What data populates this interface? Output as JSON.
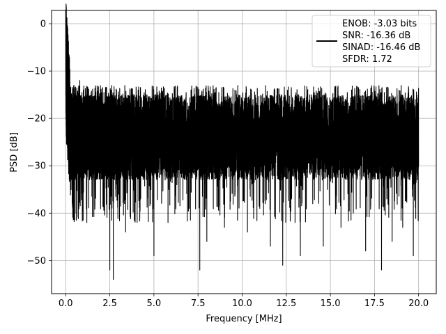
{
  "chart_data": {
    "type": "line",
    "title": "",
    "xlabel": "Frequency [MHz]",
    "ylabel": "PSD [dB]",
    "xlim": [
      -0.8,
      21.0
    ],
    "ylim": [
      -57.0,
      2.8
    ],
    "x_ticks": [
      0.0,
      2.5,
      5.0,
      7.5,
      10.0,
      12.5,
      15.0,
      17.5,
      20.0
    ],
    "x_tick_labels": [
      "0.0",
      "2.5",
      "5.0",
      "7.5",
      "10.0",
      "12.5",
      "15.0",
      "17.5",
      "20.0"
    ],
    "y_ticks": [
      0,
      -10,
      -20,
      -30,
      -40,
      -50
    ],
    "y_tick_labels": [
      "0",
      "−10",
      "−20",
      "−30",
      "−40",
      "−50"
    ],
    "grid": true,
    "legend": {
      "position": "top-right",
      "entries": [
        "ENOB: -3.03 bits",
        "SNR: -16.36 dB",
        "SINAD: -16.46 dB",
        "SFDR: 1.72"
      ]
    },
    "series": [
      {
        "color": "#000000",
        "x": [
          0.0,
          0.02,
          0.05,
          0.08,
          0.1,
          0.12,
          0.15,
          0.18,
          0.2,
          0.25,
          0.3,
          0.35,
          0.4,
          0.45,
          0.5,
          0.6,
          0.7,
          0.8,
          0.9,
          1.0,
          1.2,
          1.4,
          1.6,
          1.8,
          2.0,
          2.2,
          2.4,
          2.5,
          2.6,
          2.7,
          2.8,
          3.0,
          3.2,
          3.4,
          3.6,
          3.8,
          4.0,
          4.2,
          4.5,
          4.8,
          5.0,
          5.2,
          5.5,
          5.8,
          6.0,
          6.3,
          6.6,
          7.0,
          7.3,
          7.6,
          7.8,
          8.0,
          8.3,
          8.6,
          9.0,
          9.3,
          9.6,
          10.0,
          10.3,
          10.6,
          11.0,
          11.3,
          11.6,
          12.0,
          12.3,
          12.6,
          13.0,
          13.3,
          13.6,
          14.0,
          14.3,
          14.6,
          15.0,
          15.3,
          15.6,
          16.0,
          16.3,
          16.6,
          17.0,
          17.3,
          17.6,
          17.9,
          18.2,
          18.5,
          18.8,
          19.1,
          19.4,
          19.7,
          20.0
        ],
        "y": [
          0,
          -5,
          -12,
          -8,
          -22,
          -14,
          -26,
          -11,
          -20,
          -24,
          -15,
          -30,
          -18,
          -38,
          -25,
          -16,
          -28,
          -12,
          -33,
          -22,
          -42,
          -19,
          -35,
          -28,
          -17,
          -40,
          -23,
          -52,
          -30,
          -54,
          -21,
          -36,
          -19,
          -44,
          -26,
          -33,
          -18,
          -41,
          -24,
          -38,
          -49,
          -28,
          -19,
          -42,
          -25,
          -34,
          -17,
          -39,
          -23,
          -52,
          -31,
          -46,
          -27,
          -19,
          -43,
          -25,
          -36,
          -18,
          -44,
          -27,
          -39,
          -22,
          -47,
          -30,
          -51,
          -24,
          -42,
          -49,
          -28,
          -38,
          -21,
          -47,
          -33,
          -26,
          -43,
          -19,
          -40,
          -29,
          -48,
          -32,
          -24,
          -52,
          -37,
          -46,
          -27,
          -43,
          -31,
          -49,
          -30
        ]
      }
    ]
  }
}
